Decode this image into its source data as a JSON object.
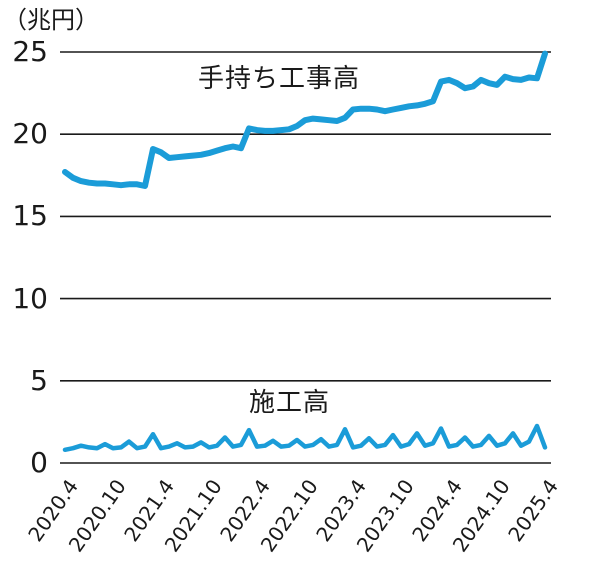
{
  "chart_data": {
    "type": "line",
    "title": "",
    "unit_label": "（兆円）",
    "xlabel": "",
    "ylabel": "（兆円）",
    "ylim": [
      0,
      25
    ],
    "y_ticks": [
      0,
      5,
      10,
      15,
      20,
      25
    ],
    "grid": "horizontal",
    "legend": "inline-labels",
    "x_tick_labels": [
      "2020.4",
      "2020.10",
      "2021.4",
      "2021.10",
      "2022.4",
      "2022.10",
      "2023.4",
      "2023.10",
      "2024.4",
      "2024.10",
      "2025.4"
    ],
    "x_start": "2020.4",
    "x_end": "2025.4",
    "x_frequency": "monthly",
    "line_color": "#1b9cd8",
    "text_color": "#1a1a1a",
    "series": [
      {
        "name": "手持ち工事高",
        "color": "#1b9cd8",
        "values": [
          17.7,
          17.35,
          17.15,
          17.05,
          17.0,
          17.0,
          16.95,
          16.9,
          16.95,
          16.95,
          16.85,
          19.1,
          18.9,
          18.55,
          18.6,
          18.65,
          18.7,
          18.75,
          18.85,
          19.0,
          19.15,
          19.25,
          19.15,
          20.35,
          20.25,
          20.2,
          20.2,
          20.25,
          20.3,
          20.5,
          20.85,
          20.95,
          20.9,
          20.85,
          20.8,
          21.0,
          21.5,
          21.55,
          21.55,
          21.5,
          21.4,
          21.5,
          21.6,
          21.7,
          21.75,
          21.85,
          22.0,
          23.2,
          23.3,
          23.1,
          22.8,
          22.9,
          23.3,
          23.1,
          23.0,
          23.5,
          23.35,
          23.3,
          23.45,
          23.4,
          24.9
        ]
      },
      {
        "name": "施工高",
        "color": "#1b9cd8",
        "values": [
          0.8,
          0.9,
          1.05,
          0.95,
          0.9,
          1.15,
          0.9,
          0.95,
          1.3,
          0.9,
          1.0,
          1.75,
          0.9,
          1.0,
          1.2,
          0.95,
          1.0,
          1.25,
          0.95,
          1.05,
          1.55,
          1.0,
          1.1,
          2.0,
          1.0,
          1.05,
          1.35,
          1.0,
          1.05,
          1.4,
          1.0,
          1.1,
          1.45,
          1.0,
          1.1,
          2.05,
          0.95,
          1.05,
          1.5,
          1.0,
          1.1,
          1.7,
          1.0,
          1.15,
          1.8,
          1.05,
          1.2,
          2.1,
          1.0,
          1.1,
          1.55,
          1.0,
          1.1,
          1.65,
          1.05,
          1.2,
          1.8,
          1.05,
          1.3,
          2.25,
          0.95
        ]
      }
    ]
  }
}
